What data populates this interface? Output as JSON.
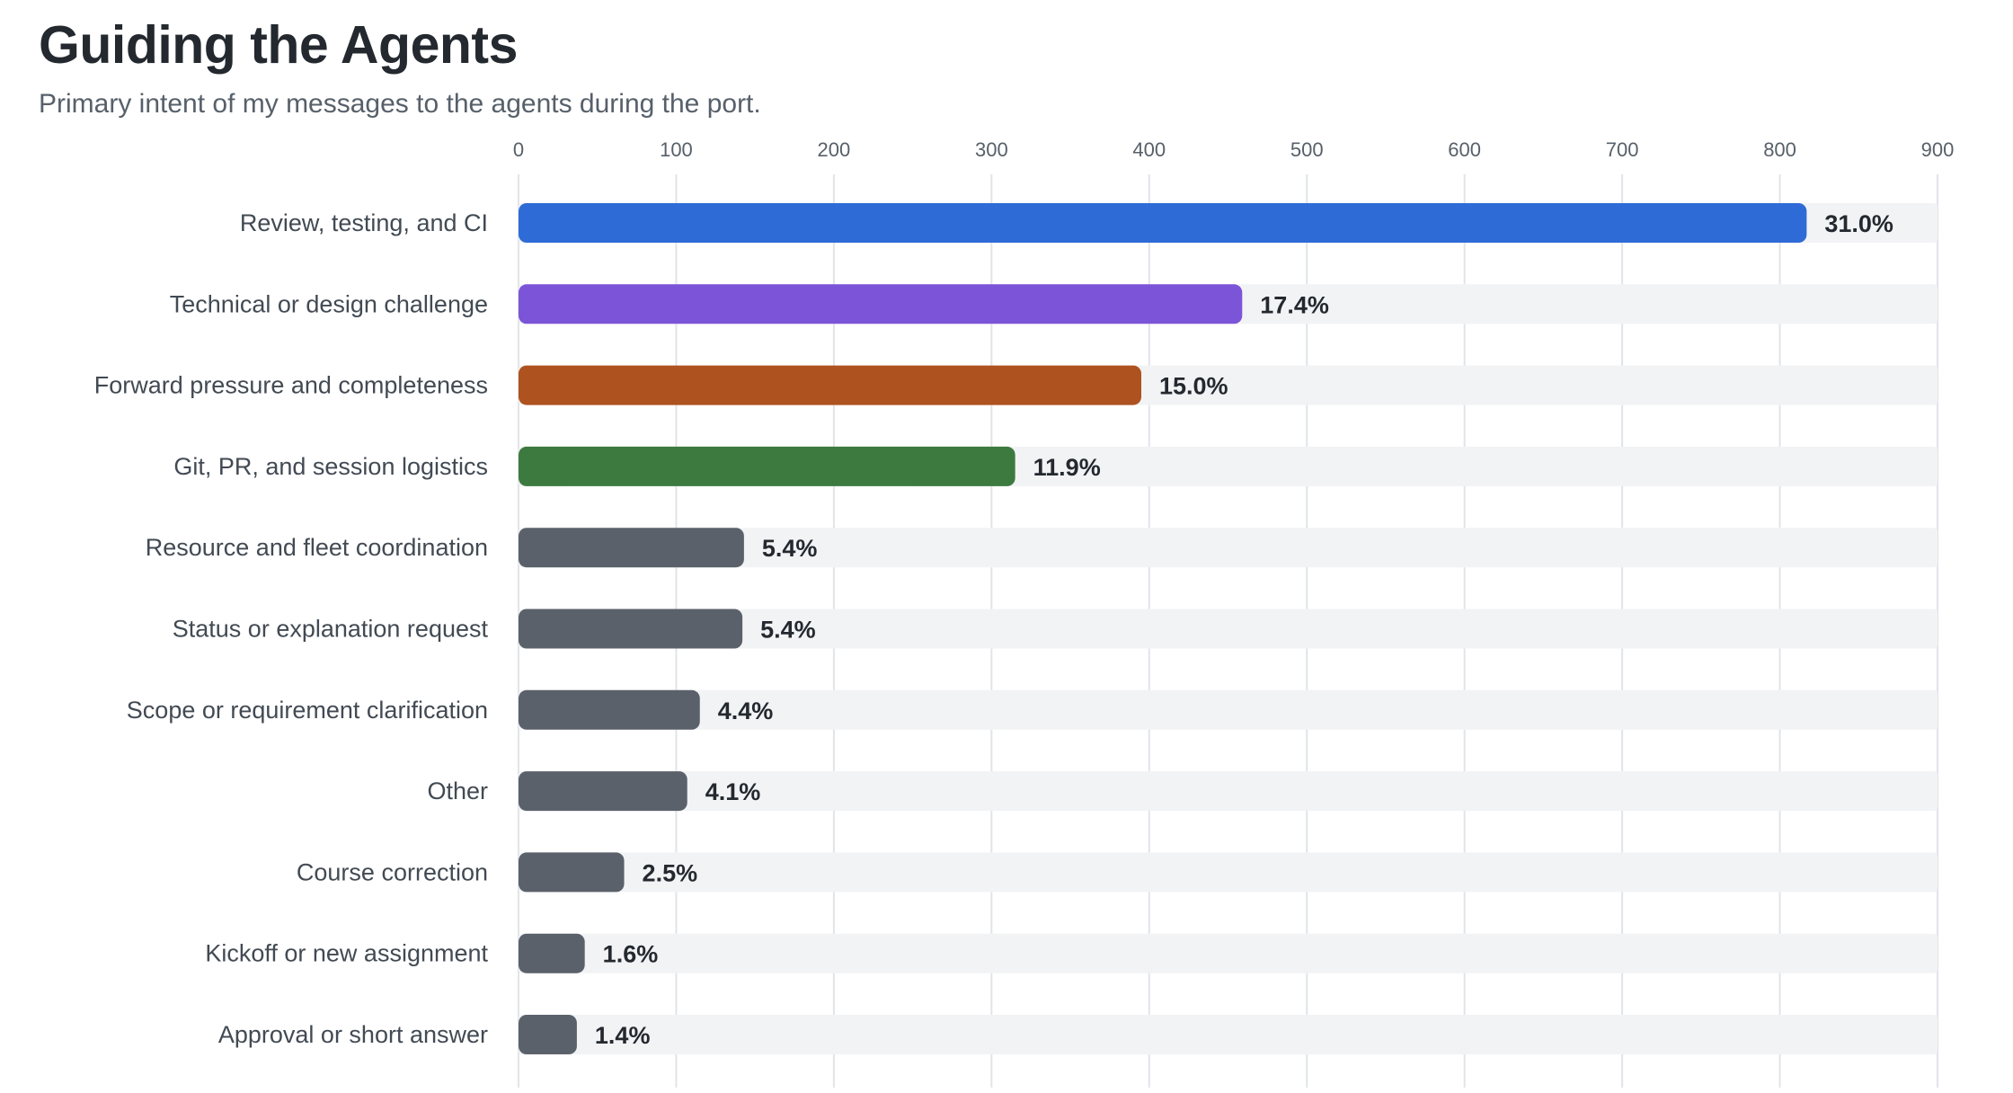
{
  "title": "Guiding the Agents",
  "subtitle": "Primary intent of my messages to the agents during the port.",
  "chart_data": {
    "type": "bar",
    "orientation": "horizontal",
    "title": "Guiding the Agents",
    "subtitle": "Primary intent of my messages to the agents during the port.",
    "xlabel": "",
    "ylabel": "",
    "xlim": [
      0,
      900
    ],
    "xticks": [
      "0",
      "100",
      "200",
      "300",
      "400",
      "500",
      "600",
      "700",
      "800",
      "900"
    ],
    "grid": true,
    "categories": [
      "Review, testing, and CI",
      "Technical or design challenge",
      "Forward pressure and completeness",
      "Git, PR, and session logistics",
      "Resource and fleet coordination",
      "Status or explanation request",
      "Scope or requirement clarification",
      "Other",
      "Course correction",
      "Kickoff or new assignment",
      "Approval or short answer"
    ],
    "values": [
      817,
      459,
      395,
      315,
      143,
      142,
      115,
      107,
      67,
      42,
      37
    ],
    "labels": [
      "31.0%",
      "17.4%",
      "15.0%",
      "11.9%",
      "5.4%",
      "5.4%",
      "4.4%",
      "4.1%",
      "2.5%",
      "1.6%",
      "1.4%"
    ],
    "colors": [
      "#2f6bd6",
      "#7b54d8",
      "#ae521f",
      "#3d7a40",
      "#5b616b",
      "#5b616b",
      "#5b616b",
      "#5b616b",
      "#5b616b",
      "#5b616b",
      "#5b616b"
    ],
    "track_color": "#f2f3f5",
    "grid_color": "#e1e4e8"
  }
}
